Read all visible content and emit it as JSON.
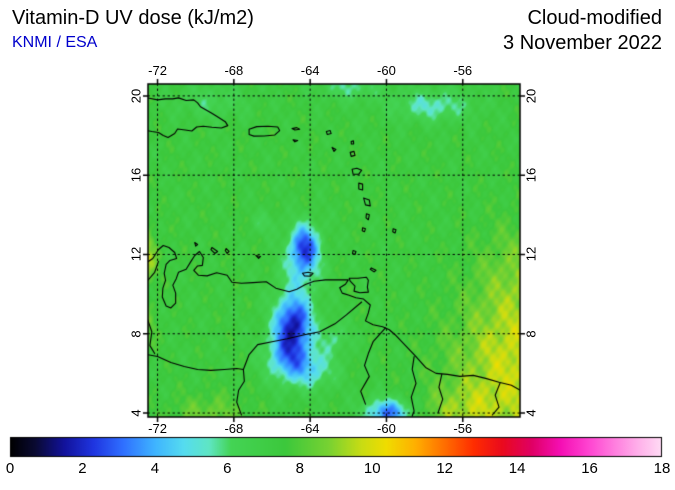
{
  "header": {
    "title": "Vitamin-D UV dose (kJ/m2)",
    "source": "KNMI / ESA",
    "source_color": "#0000cc",
    "mode": "Cloud-modified",
    "date": "3 November 2022"
  },
  "map": {
    "axes": {
      "lon_ticks": [
        -72,
        -68,
        -64,
        -60,
        -56
      ],
      "lon_tick_labels": [
        "-72",
        "-68",
        "-64",
        "-60",
        "-56"
      ],
      "lat_ticks": [
        20,
        16,
        12,
        8,
        4
      ],
      "lat_tick_labels": [
        "20",
        "16",
        "12",
        "8",
        "4"
      ],
      "lon_range": [
        -72.5,
        -53.0
      ],
      "lat_range": [
        3.8,
        20.6
      ]
    },
    "field": {
      "base": 7.4,
      "blobs": [
        {
          "lon": -64.3,
          "lat": 12.4,
          "sx": 0.55,
          "sy": 0.8,
          "amp": -4.8
        },
        {
          "lon": -64.45,
          "lat": 11.1,
          "sx": 0.8,
          "sy": 0.8,
          "amp": -1.6
        },
        {
          "lon": -64.85,
          "lat": 8.6,
          "sx": 0.7,
          "sy": 1.0,
          "amp": -5.2
        },
        {
          "lon": -65.2,
          "lat": 6.9,
          "sx": 0.8,
          "sy": 0.9,
          "amp": -3.2
        },
        {
          "lon": -63.9,
          "lat": 6.2,
          "sx": 0.9,
          "sy": 0.7,
          "amp": -2.2
        },
        {
          "lon": -62.7,
          "lat": 7.8,
          "sx": 0.55,
          "sy": 0.55,
          "amp": -1.4
        },
        {
          "lon": -59.9,
          "lat": 4.0,
          "sx": 0.85,
          "sy": 0.5,
          "amp": -4.2
        },
        {
          "lon": -57.6,
          "lat": 19.5,
          "sx": 1.5,
          "sy": 0.55,
          "amp": -2.0
        },
        {
          "lon": -61.9,
          "lat": 20.5,
          "sx": 1.1,
          "sy": 0.5,
          "amp": -1.6
        },
        {
          "lon": -69.2,
          "lat": 19.7,
          "sx": 1.3,
          "sy": 0.6,
          "amp": -1.1
        },
        {
          "lon": -66.4,
          "lat": 13.6,
          "sx": 0.5,
          "sy": 0.4,
          "amp": -0.9
        },
        {
          "lon": -72.85,
          "lat": 11.9,
          "sx": 0.5,
          "sy": 0.9,
          "amp": 2.8
        },
        {
          "lon": -72.9,
          "lat": 8.4,
          "sx": 0.5,
          "sy": 0.8,
          "amp": 1.4
        },
        {
          "lon": -53.3,
          "lat": 6.3,
          "sx": 2.4,
          "sy": 2.6,
          "amp": 2.3
        },
        {
          "lon": -53.0,
          "lat": 11.0,
          "sx": 1.6,
          "sy": 2.0,
          "amp": 1.1
        },
        {
          "lon": -56.0,
          "lat": 4.0,
          "sx": 1.6,
          "sy": 0.9,
          "amp": 1.2
        },
        {
          "lon": -69.3,
          "lat": 3.8,
          "sx": 1.4,
          "sy": 0.8,
          "amp": 1.2
        }
      ],
      "noise": [
        {
          "a": 0.25,
          "fx": 3.3,
          "fy": 1.7,
          "p": 0.0
        },
        {
          "a": 0.22,
          "fx": 5.1,
          "fy": -2.9,
          "p": 1.3
        },
        {
          "a": 0.18,
          "fx": 8.7,
          "fy": 6.1,
          "p": 0.5
        },
        {
          "a": 0.12,
          "fx": 12.3,
          "fy": -9.7,
          "p": 2.0
        }
      ]
    },
    "coastlines": [
      [
        [
          -72.55,
          19.9
        ],
        [
          -72.0,
          19.8
        ],
        [
          -71.6,
          19.85
        ],
        [
          -71.2,
          19.85
        ],
        [
          -70.9,
          19.9
        ],
        [
          -70.5,
          19.77
        ],
        [
          -70.1,
          19.8
        ],
        [
          -69.9,
          19.65
        ],
        [
          -69.75,
          19.45
        ],
        [
          -69.2,
          19.15
        ],
        [
          -68.9,
          18.97
        ],
        [
          -68.45,
          18.7
        ],
        [
          -68.32,
          18.5
        ],
        [
          -68.65,
          18.38
        ],
        [
          -69.15,
          18.42
        ],
        [
          -69.6,
          18.47
        ],
        [
          -69.95,
          18.43
        ],
        [
          -70.2,
          18.23
        ],
        [
          -70.55,
          18.28
        ],
        [
          -70.95,
          18.33
        ],
        [
          -71.1,
          18.1
        ],
        [
          -71.45,
          17.9
        ],
        [
          -71.7,
          18.0
        ],
        [
          -71.95,
          18.15
        ],
        [
          -72.3,
          18.2
        ],
        [
          -72.55,
          18.25
        ]
      ],
      [
        [
          -67.2,
          18.32
        ],
        [
          -66.8,
          18.45
        ],
        [
          -66.2,
          18.47
        ],
        [
          -65.7,
          18.43
        ],
        [
          -65.6,
          18.25
        ],
        [
          -65.85,
          18.03
        ],
        [
          -66.4,
          17.98
        ],
        [
          -66.95,
          17.97
        ],
        [
          -67.2,
          18.05
        ],
        [
          -67.2,
          18.32
        ]
      ],
      [
        [
          -64.95,
          18.35
        ],
        [
          -64.7,
          18.4
        ],
        [
          -64.55,
          18.32
        ],
        [
          -64.8,
          18.28
        ],
        [
          -64.95,
          18.35
        ]
      ],
      [
        [
          -64.9,
          17.78
        ],
        [
          -64.65,
          17.75
        ],
        [
          -64.8,
          17.68
        ],
        [
          -64.9,
          17.78
        ]
      ],
      [
        [
          -63.15,
          18.2
        ],
        [
          -62.95,
          18.25
        ],
        [
          -62.9,
          18.1
        ],
        [
          -63.1,
          18.05
        ],
        [
          -63.15,
          18.2
        ]
      ],
      [
        [
          -61.85,
          17.7
        ],
        [
          -61.73,
          17.73
        ],
        [
          -61.72,
          17.58
        ],
        [
          -61.84,
          17.57
        ],
        [
          -61.85,
          17.7
        ]
      ],
      [
        [
          -61.9,
          17.15
        ],
        [
          -61.7,
          17.2
        ],
        [
          -61.65,
          17.0
        ],
        [
          -61.85,
          16.95
        ],
        [
          -61.9,
          17.15
        ]
      ],
      [
        [
          -62.85,
          17.4
        ],
        [
          -62.65,
          17.3
        ],
        [
          -62.75,
          17.2
        ],
        [
          -62.85,
          17.4
        ]
      ],
      [
        [
          -61.8,
          16.3
        ],
        [
          -61.55,
          16.35
        ],
        [
          -61.3,
          16.25
        ],
        [
          -61.45,
          16.05
        ],
        [
          -61.75,
          16.05
        ],
        [
          -61.8,
          16.3
        ]
      ],
      [
        [
          -61.45,
          15.6
        ],
        [
          -61.25,
          15.55
        ],
        [
          -61.25,
          15.25
        ],
        [
          -61.45,
          15.3
        ],
        [
          -61.45,
          15.6
        ]
      ],
      [
        [
          -61.2,
          14.85
        ],
        [
          -60.9,
          14.75
        ],
        [
          -60.85,
          14.45
        ],
        [
          -61.1,
          14.5
        ],
        [
          -61.2,
          14.85
        ]
      ],
      [
        [
          -61.05,
          14.05
        ],
        [
          -60.9,
          14.0
        ],
        [
          -60.95,
          13.75
        ],
        [
          -61.07,
          13.85
        ],
        [
          -61.05,
          14.05
        ]
      ],
      [
        [
          -61.25,
          13.35
        ],
        [
          -61.1,
          13.3
        ],
        [
          -61.15,
          13.15
        ],
        [
          -61.27,
          13.2
        ],
        [
          -61.25,
          13.35
        ]
      ],
      [
        [
          -61.75,
          12.2
        ],
        [
          -61.6,
          12.15
        ],
        [
          -61.65,
          12.0
        ],
        [
          -61.78,
          12.05
        ],
        [
          -61.75,
          12.2
        ]
      ],
      [
        [
          -59.65,
          13.3
        ],
        [
          -59.5,
          13.25
        ],
        [
          -59.55,
          13.08
        ],
        [
          -59.67,
          13.15
        ],
        [
          -59.65,
          13.3
        ]
      ],
      [
        [
          -60.8,
          11.32
        ],
        [
          -60.55,
          11.2
        ],
        [
          -60.65,
          11.12
        ],
        [
          -60.85,
          11.25
        ],
        [
          -60.8,
          11.32
        ]
      ],
      [
        [
          -61.95,
          10.8
        ],
        [
          -61.5,
          10.8
        ],
        [
          -61.05,
          10.85
        ],
        [
          -60.95,
          10.7
        ],
        [
          -61.0,
          10.35
        ],
        [
          -60.95,
          10.1
        ],
        [
          -61.4,
          10.07
        ],
        [
          -61.7,
          10.15
        ],
        [
          -61.65,
          10.4
        ],
        [
          -61.9,
          10.65
        ],
        [
          -61.95,
          10.8
        ]
      ],
      [
        [
          -64.4,
          11.05
        ],
        [
          -64.1,
          11.1
        ],
        [
          -63.85,
          11.05
        ],
        [
          -64.0,
          10.9
        ],
        [
          -64.3,
          10.92
        ],
        [
          -64.4,
          11.05
        ]
      ],
      [
        [
          -66.85,
          11.95
        ],
        [
          -66.6,
          11.9
        ],
        [
          -66.7,
          11.8
        ],
        [
          -66.85,
          11.95
        ]
      ],
      [
        [
          -70.05,
          12.6
        ],
        [
          -69.9,
          12.5
        ],
        [
          -70.0,
          12.42
        ],
        [
          -70.05,
          12.6
        ]
      ],
      [
        [
          -69.15,
          12.35
        ],
        [
          -68.85,
          12.15
        ],
        [
          -69.0,
          12.05
        ],
        [
          -69.2,
          12.25
        ],
        [
          -69.15,
          12.35
        ]
      ],
      [
        [
          -68.4,
          12.3
        ],
        [
          -68.25,
          12.15
        ],
        [
          -68.35,
          12.05
        ],
        [
          -68.45,
          12.2
        ],
        [
          -68.4,
          12.3
        ]
      ],
      [
        [
          -72.55,
          11.6
        ],
        [
          -72.25,
          11.8
        ],
        [
          -71.95,
          12.25
        ],
        [
          -71.7,
          12.45
        ],
        [
          -71.4,
          12.35
        ],
        [
          -71.1,
          12.1
        ],
        [
          -71.0,
          11.8
        ],
        [
          -71.35,
          11.7
        ],
        [
          -71.55,
          11.5
        ],
        [
          -71.65,
          11.05
        ],
        [
          -71.58,
          10.7
        ],
        [
          -71.72,
          10.3
        ],
        [
          -71.75,
          9.85
        ],
        [
          -71.55,
          9.4
        ],
        [
          -71.3,
          9.3
        ],
        [
          -71.05,
          9.55
        ],
        [
          -71.05,
          10.05
        ],
        [
          -71.2,
          10.45
        ],
        [
          -71.02,
          10.78
        ],
        [
          -70.9,
          11.1
        ],
        [
          -70.5,
          11.25
        ],
        [
          -70.28,
          11.6
        ],
        [
          -70.05,
          11.95
        ],
        [
          -69.8,
          12.15
        ],
        [
          -69.6,
          11.85
        ],
        [
          -69.65,
          11.45
        ],
        [
          -69.9,
          11.42
        ],
        [
          -70.1,
          11.2
        ],
        [
          -69.85,
          10.95
        ],
        [
          -69.4,
          10.92
        ],
        [
          -68.9,
          11.08
        ],
        [
          -68.35,
          10.95
        ],
        [
          -68.1,
          10.6
        ],
        [
          -67.6,
          10.55
        ],
        [
          -67.0,
          10.58
        ],
        [
          -66.3,
          10.62
        ],
        [
          -65.8,
          10.3
        ],
        [
          -65.1,
          10.12
        ],
        [
          -64.7,
          10.25
        ],
        [
          -64.25,
          10.48
        ],
        [
          -63.8,
          10.65
        ],
        [
          -63.2,
          10.72
        ],
        [
          -62.7,
          10.72
        ],
        [
          -62.0,
          10.72
        ],
        [
          -62.15,
          10.5
        ],
        [
          -62.45,
          10.32
        ],
        [
          -62.32,
          10.05
        ],
        [
          -62.0,
          9.95
        ],
        [
          -61.6,
          9.82
        ],
        [
          -61.2,
          9.75
        ],
        [
          -60.85,
          9.45
        ],
        [
          -60.95,
          9.05
        ],
        [
          -61.1,
          8.65
        ],
        [
          -60.7,
          8.45
        ],
        [
          -60.2,
          8.35
        ],
        [
          -59.85,
          8.2
        ],
        [
          -59.55,
          7.95
        ],
        [
          -58.95,
          7.35
        ],
        [
          -58.5,
          6.9
        ],
        [
          -57.95,
          6.3
        ],
        [
          -57.4,
          6.0
        ],
        [
          -56.8,
          5.95
        ],
        [
          -56.15,
          5.85
        ],
        [
          -55.45,
          5.9
        ],
        [
          -54.8,
          5.75
        ],
        [
          -54.1,
          5.55
        ],
        [
          -53.45,
          5.4
        ],
        [
          -52.9,
          5.1
        ]
      ],
      [
        [
          -61.3,
          9.6
        ],
        [
          -62.1,
          8.95
        ],
        [
          -62.7,
          8.5
        ],
        [
          -63.5,
          8.1
        ],
        [
          -64.3,
          7.95
        ],
        [
          -65.2,
          7.75
        ],
        [
          -66.0,
          7.6
        ],
        [
          -66.75,
          7.45
        ],
        [
          -67.2,
          6.95
        ],
        [
          -67.5,
          6.2
        ],
        [
          -67.45,
          5.6
        ],
        [
          -67.75,
          5.15
        ],
        [
          -67.85,
          4.55
        ],
        [
          -67.6,
          3.9
        ]
      ],
      [
        [
          -72.55,
          6.95
        ],
        [
          -72.0,
          6.85
        ],
        [
          -71.3,
          6.55
        ],
        [
          -70.6,
          6.35
        ],
        [
          -69.9,
          6.2
        ],
        [
          -69.2,
          6.15
        ],
        [
          -68.5,
          6.2
        ],
        [
          -67.85,
          6.25
        ],
        [
          -67.5,
          6.2
        ]
      ],
      [
        [
          -72.55,
          8.8
        ],
        [
          -72.3,
          8.1
        ],
        [
          -72.4,
          7.4
        ],
        [
          -72.15,
          7.0
        ]
      ],
      [
        [
          -71.95,
          11.65
        ],
        [
          -72.15,
          11.1
        ],
        [
          -72.5,
          10.7
        ]
      ],
      [
        [
          -58.55,
          6.85
        ],
        [
          -58.65,
          6.2
        ],
        [
          -58.45,
          5.5
        ],
        [
          -58.7,
          4.8
        ],
        [
          -58.55,
          4.1
        ],
        [
          -58.65,
          3.85
        ]
      ],
      [
        [
          -60.05,
          8.3
        ],
        [
          -60.7,
          7.6
        ],
        [
          -60.95,
          7.0
        ],
        [
          -61.15,
          6.4
        ],
        [
          -60.9,
          5.85
        ],
        [
          -61.35,
          5.1
        ],
        [
          -61.1,
          4.45
        ]
      ],
      [
        [
          -57.1,
          5.95
        ],
        [
          -57.25,
          5.3
        ],
        [
          -57.05,
          4.7
        ],
        [
          -57.3,
          4.0
        ]
      ],
      [
        [
          -54.05,
          5.5
        ],
        [
          -54.3,
          4.9
        ],
        [
          -54.1,
          4.3
        ],
        [
          -54.45,
          3.9
        ]
      ]
    ]
  },
  "colorbar": {
    "min": 0,
    "max": 18,
    "tick_values": [
      0,
      2,
      4,
      6,
      8,
      10,
      12,
      14,
      16,
      18
    ],
    "tick_labels": [
      "0",
      "2",
      "4",
      "6",
      "8",
      "10",
      "12",
      "14",
      "16",
      "18"
    ],
    "stops": [
      [
        0.0,
        "#000000"
      ],
      [
        0.7,
        "#0a0a32"
      ],
      [
        1.5,
        "#12129b"
      ],
      [
        2.3,
        "#1f35e0"
      ],
      [
        3.1,
        "#2f6eff"
      ],
      [
        4.0,
        "#3fb4ff"
      ],
      [
        4.8,
        "#55dcf0"
      ],
      [
        5.5,
        "#5fe6c3"
      ],
      [
        6.1,
        "#44d455"
      ],
      [
        7.6,
        "#3cc83c"
      ],
      [
        8.8,
        "#78d232"
      ],
      [
        9.7,
        "#c8dc14"
      ],
      [
        10.4,
        "#f0dc00"
      ],
      [
        11.2,
        "#ffaf00"
      ],
      [
        12.0,
        "#ff6e00"
      ],
      [
        12.8,
        "#ff2d00"
      ],
      [
        13.6,
        "#ea0a1e"
      ],
      [
        14.4,
        "#e00064"
      ],
      [
        15.2,
        "#f50fb4"
      ],
      [
        16.0,
        "#ff46d2"
      ],
      [
        16.8,
        "#ff87e1"
      ],
      [
        17.4,
        "#ffb4eb"
      ],
      [
        18.0,
        "#ffdcf5"
      ]
    ]
  }
}
